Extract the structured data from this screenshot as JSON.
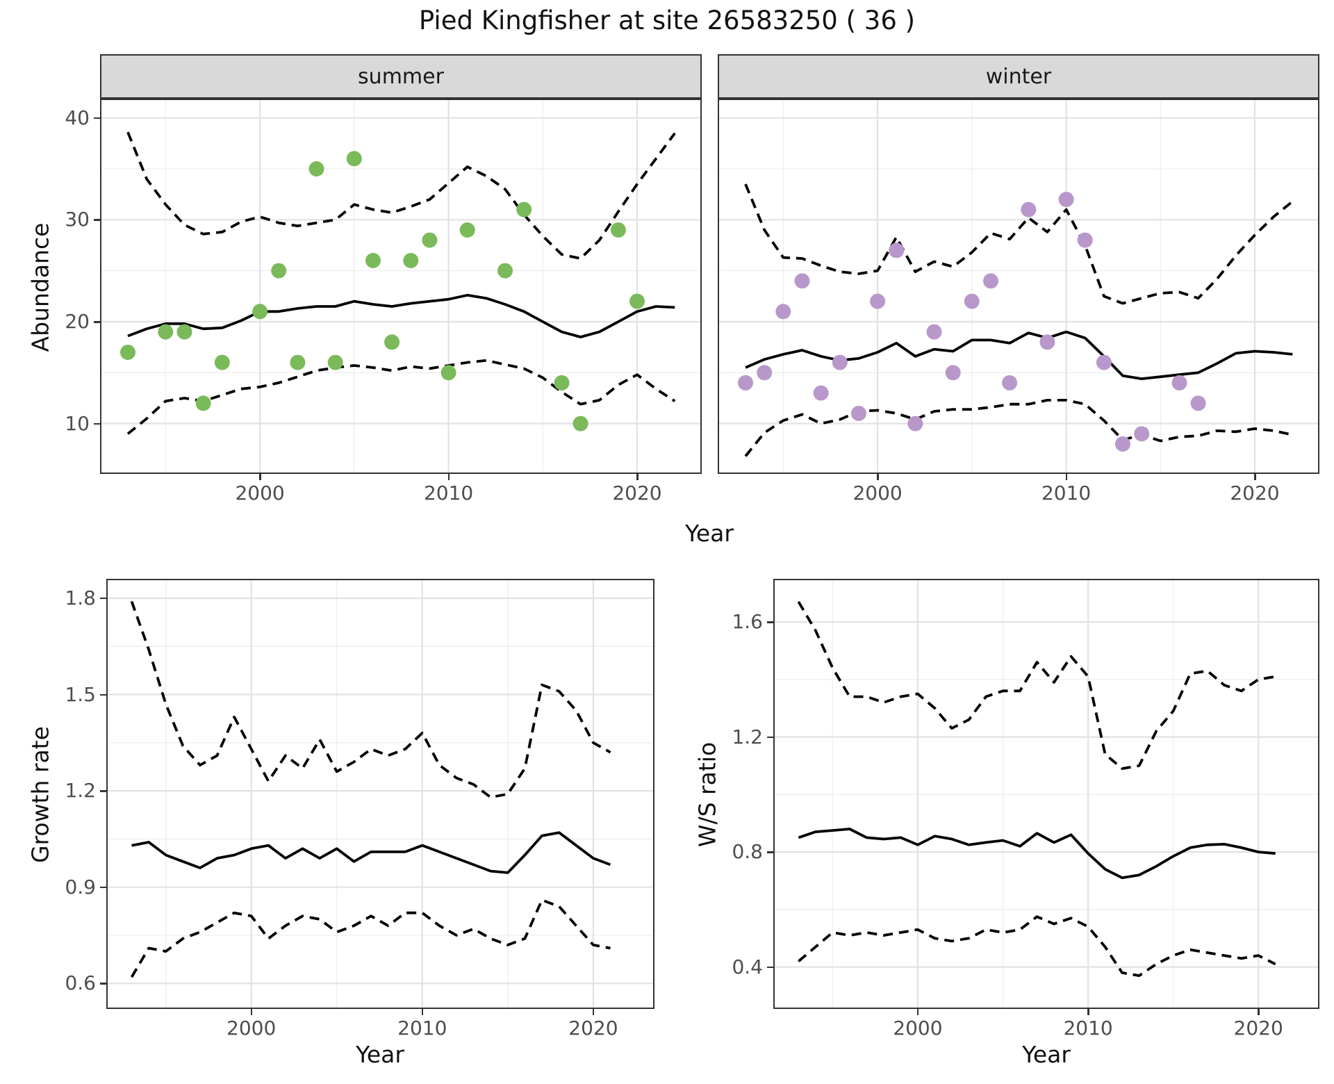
{
  "title": "Pied Kingfisher at site 26583250 ( 36 )",
  "axes": {
    "abundance_label": "Abundance",
    "growth_label": "Growth rate",
    "ws_label": "W/S ratio",
    "year_label_top": "Year",
    "year_label_bottom_left": "Year",
    "year_label_bottom_right": "Year"
  },
  "facets": {
    "summer": "summer",
    "winter": "winter"
  },
  "colors": {
    "summer_points": "#7aba5a",
    "winter_points": "#b897ca",
    "line": "#000000",
    "strip_background": "#d9d9d9",
    "panel_border": "#333333",
    "grid_major": "#e2e2e2",
    "grid_minor": "#f0f0f0",
    "tick_label": "#4d4d4d"
  },
  "chart_data": [
    {
      "type": "line+scatter",
      "id": "abundance-summer",
      "strip_label": "summer",
      "xlabel": "Year",
      "ylabel": "Abundance",
      "xlim": [
        1991.6,
        2023.35
      ],
      "ylim": [
        5.2,
        41.75
      ],
      "xticks": [
        2000,
        2010,
        2020
      ],
      "xtick_labels": [
        "2000",
        "2010",
        "2020"
      ],
      "xminor": [
        1995,
        2005,
        2015
      ],
      "yticks": [
        10,
        20,
        30,
        40
      ],
      "ytick_labels": [
        "10",
        "20",
        "30",
        "40"
      ],
      "yminor": [
        15,
        25,
        35
      ],
      "show_y_tick_labels": true,
      "grid": "on",
      "legend": "none",
      "x": [
        1993,
        1994,
        1995,
        1996,
        1997,
        1998,
        1999,
        2000,
        2001,
        2002,
        2003,
        2004,
        2005,
        2006,
        2007,
        2008,
        2009,
        2010,
        2011,
        2012,
        2013,
        2014,
        2015,
        2016,
        2017,
        2018,
        2019,
        2020,
        2021,
        2022
      ],
      "series": [
        {
          "name": "mean",
          "style": "solid",
          "values": [
            18.6,
            19.3,
            19.8,
            19.8,
            19.3,
            19.4,
            20.1,
            21.0,
            21.0,
            21.3,
            21.5,
            21.5,
            22.0,
            21.7,
            21.5,
            21.8,
            22.0,
            22.2,
            22.6,
            22.3,
            21.7,
            21.0,
            20.0,
            19.0,
            18.5,
            19.0,
            20.0,
            21.0,
            21.5,
            21.4
          ]
        },
        {
          "name": "upper_ci",
          "style": "dashed",
          "values": [
            38.6,
            34.0,
            31.5,
            29.5,
            28.6,
            28.8,
            29.8,
            30.3,
            29.7,
            29.4,
            29.7,
            30.0,
            31.5,
            31.0,
            30.7,
            31.3,
            32.0,
            33.6,
            35.2,
            34.3,
            33.0,
            30.5,
            28.4,
            26.6,
            26.2,
            28.0,
            30.8,
            33.5,
            36.0,
            38.5
          ]
        },
        {
          "name": "lower_ci",
          "style": "dashed",
          "values": [
            9.0,
            10.5,
            12.2,
            12.5,
            12.2,
            12.8,
            13.4,
            13.6,
            14.0,
            14.6,
            15.2,
            15.5,
            15.7,
            15.5,
            15.2,
            15.6,
            15.4,
            15.7,
            16.0,
            16.2,
            15.8,
            15.4,
            14.5,
            13.1,
            11.9,
            12.3,
            13.8,
            14.8,
            13.4,
            12.2
          ]
        }
      ],
      "scatter": {
        "name": "observed-counts-summer",
        "color": "#7aba5a",
        "x": [
          1993,
          1995,
          1996,
          1997,
          1998,
          2000,
          2001,
          2002,
          2003,
          2004,
          2005,
          2006,
          2007,
          2008,
          2009,
          2010,
          2011,
          2013,
          2014,
          2016,
          2017,
          2019,
          2020
        ],
        "y": [
          17,
          19,
          19,
          12,
          16,
          21,
          25,
          16,
          35,
          16,
          36,
          26,
          18,
          26,
          28,
          15,
          29,
          25,
          31,
          14,
          10,
          29,
          22
        ]
      }
    },
    {
      "type": "line+scatter",
      "id": "abundance-winter",
      "strip_label": "winter",
      "xlabel": "Year",
      "ylabel": "Abundance",
      "xlim": [
        1991.6,
        2023.35
      ],
      "ylim": [
        5.2,
        41.75
      ],
      "xticks": [
        2000,
        2010,
        2020
      ],
      "xtick_labels": [
        "2000",
        "2010",
        "2020"
      ],
      "xminor": [
        1995,
        2005,
        2015
      ],
      "yticks": [
        10,
        20,
        30,
        40
      ],
      "ytick_labels": [
        "10",
        "20",
        "30",
        "40"
      ],
      "yminor": [
        15,
        25,
        35
      ],
      "show_y_tick_labels": false,
      "grid": "on",
      "legend": "none",
      "x": [
        1993,
        1994,
        1995,
        1996,
        1997,
        1998,
        1999,
        2000,
        2001,
        2002,
        2003,
        2004,
        2005,
        2006,
        2007,
        2008,
        2009,
        2010,
        2011,
        2012,
        2013,
        2014,
        2015,
        2016,
        2017,
        2018,
        2019,
        2020,
        2021,
        2022
      ],
      "series": [
        {
          "name": "mean",
          "style": "solid",
          "values": [
            15.5,
            16.3,
            16.8,
            17.2,
            16.6,
            16.2,
            16.4,
            17.0,
            17.9,
            16.6,
            17.3,
            17.1,
            18.2,
            18.2,
            17.9,
            18.9,
            18.4,
            19.0,
            18.4,
            16.6,
            14.7,
            14.4,
            14.6,
            14.8,
            15.0,
            15.9,
            16.9,
            17.1,
            17.0,
            16.8
          ]
        },
        {
          "name": "upper_ci",
          "style": "dashed",
          "values": [
            33.5,
            29.0,
            26.3,
            26.2,
            25.5,
            24.9,
            24.7,
            25.0,
            28.3,
            24.9,
            25.9,
            25.4,
            26.8,
            28.7,
            28.1,
            30.2,
            28.8,
            31.0,
            27.5,
            22.5,
            21.8,
            22.3,
            22.8,
            22.9,
            22.3,
            24.2,
            26.5,
            28.5,
            30.3,
            31.8
          ]
        },
        {
          "name": "lower_ci",
          "style": "dashed",
          "values": [
            6.8,
            9.1,
            10.3,
            10.9,
            10.0,
            10.4,
            11.2,
            11.3,
            11.0,
            10.4,
            11.2,
            11.4,
            11.4,
            11.6,
            11.9,
            11.9,
            12.3,
            12.3,
            11.9,
            10.3,
            8.4,
            8.9,
            8.3,
            8.7,
            8.8,
            9.3,
            9.2,
            9.5,
            9.3,
            8.9
          ]
        }
      ],
      "scatter": {
        "name": "observed-counts-winter",
        "color": "#b897ca",
        "x": [
          1993,
          1994,
          1995,
          1996,
          1997,
          1998,
          1999,
          2000,
          2001,
          2002,
          2003,
          2004,
          2005,
          2006,
          2007,
          2008,
          2009,
          2010,
          2011,
          2012,
          2013,
          2014,
          2016,
          2017
        ],
        "y": [
          14,
          15,
          21,
          24,
          13,
          16,
          11,
          22,
          27,
          10,
          19,
          15,
          22,
          24,
          14,
          31,
          18,
          32,
          28,
          16,
          8,
          9,
          14,
          12
        ]
      }
    },
    {
      "type": "line",
      "id": "growth-rate",
      "strip_label": "",
      "xlabel": "Year",
      "ylabel": "Growth rate",
      "xlim": [
        1991.6,
        2023.5
      ],
      "ylim": [
        0.525,
        1.856
      ],
      "xticks": [
        2000,
        2010,
        2020
      ],
      "xtick_labels": [
        "2000",
        "2010",
        "2020"
      ],
      "xminor": [
        1995,
        2005,
        2015
      ],
      "yticks": [
        0.6,
        0.9,
        1.2,
        1.5,
        1.8
      ],
      "ytick_labels": [
        "0.6",
        "0.9",
        "1.2",
        "1.5",
        "1.8"
      ],
      "yminor": [
        0.75,
        1.05,
        1.35,
        1.65
      ],
      "show_y_tick_labels": true,
      "grid": "on",
      "legend": "none",
      "x": [
        1993,
        1994,
        1995,
        1996,
        1997,
        1998,
        1999,
        2000,
        2001,
        2002,
        2003,
        2004,
        2005,
        2006,
        2007,
        2008,
        2009,
        2010,
        2011,
        2012,
        2013,
        2014,
        2015,
        2016,
        2017,
        2018,
        2019,
        2020,
        2021
      ],
      "series": [
        {
          "name": "mean",
          "style": "solid",
          "values": [
            1.03,
            1.04,
            1.0,
            0.98,
            0.96,
            0.99,
            1.0,
            1.02,
            1.03,
            0.99,
            1.02,
            0.99,
            1.02,
            0.98,
            1.01,
            1.01,
            1.01,
            1.03,
            1.01,
            0.99,
            0.97,
            0.95,
            0.945,
            1.0,
            1.06,
            1.07,
            1.03,
            0.99,
            0.97
          ]
        },
        {
          "name": "upper_ci",
          "style": "dashed",
          "values": [
            1.79,
            1.64,
            1.47,
            1.34,
            1.28,
            1.31,
            1.43,
            1.33,
            1.23,
            1.31,
            1.27,
            1.36,
            1.26,
            1.29,
            1.33,
            1.31,
            1.33,
            1.38,
            1.28,
            1.24,
            1.22,
            1.18,
            1.19,
            1.27,
            1.53,
            1.51,
            1.45,
            1.35,
            1.32
          ]
        },
        {
          "name": "lower_ci",
          "style": "dashed",
          "values": [
            0.62,
            0.71,
            0.7,
            0.74,
            0.76,
            0.79,
            0.82,
            0.81,
            0.74,
            0.78,
            0.81,
            0.8,
            0.76,
            0.78,
            0.81,
            0.78,
            0.82,
            0.82,
            0.78,
            0.75,
            0.77,
            0.74,
            0.72,
            0.74,
            0.86,
            0.84,
            0.78,
            0.72,
            0.71
          ]
        }
      ]
    },
    {
      "type": "line",
      "id": "ws-ratio",
      "strip_label": "",
      "xlabel": "Year",
      "ylabel": "W/S ratio",
      "xlim": [
        1991.6,
        2023.5
      ],
      "ylim": [
        0.259,
        1.745
      ],
      "xticks": [
        2000,
        2010,
        2020
      ],
      "xtick_labels": [
        "2000",
        "2010",
        "2020"
      ],
      "xminor": [
        1995,
        2005,
        2015
      ],
      "yticks": [
        0.4,
        0.8,
        1.2,
        1.6
      ],
      "ytick_labels": [
        "0.4",
        "0.8",
        "1.2",
        "1.6"
      ],
      "yminor": [
        0.6,
        1.0,
        1.4
      ],
      "show_y_tick_labels": true,
      "grid": "on",
      "legend": "none",
      "x": [
        1993,
        1994,
        1995,
        1996,
        1997,
        1998,
        1999,
        2000,
        2001,
        2002,
        2003,
        2004,
        2005,
        2006,
        2007,
        2008,
        2009,
        2010,
        2011,
        2012,
        2013,
        2014,
        2015,
        2016,
        2017,
        2018,
        2019,
        2020,
        2021
      ],
      "series": [
        {
          "name": "mean",
          "style": "solid",
          "values": [
            0.85,
            0.87,
            0.875,
            0.88,
            0.85,
            0.845,
            0.85,
            0.825,
            0.855,
            0.845,
            0.825,
            0.833,
            0.84,
            0.82,
            0.865,
            0.833,
            0.86,
            0.795,
            0.74,
            0.71,
            0.72,
            0.75,
            0.785,
            0.815,
            0.825,
            0.827,
            0.815,
            0.8,
            0.795
          ]
        },
        {
          "name": "upper_ci",
          "style": "dashed",
          "values": [
            1.67,
            1.57,
            1.44,
            1.34,
            1.34,
            1.32,
            1.34,
            1.35,
            1.3,
            1.23,
            1.26,
            1.34,
            1.36,
            1.36,
            1.46,
            1.39,
            1.48,
            1.41,
            1.14,
            1.09,
            1.1,
            1.22,
            1.29,
            1.42,
            1.43,
            1.38,
            1.36,
            1.4,
            1.41
          ]
        },
        {
          "name": "lower_ci",
          "style": "dashed",
          "values": [
            0.42,
            0.47,
            0.52,
            0.51,
            0.52,
            0.51,
            0.52,
            0.53,
            0.5,
            0.49,
            0.5,
            0.53,
            0.52,
            0.53,
            0.575,
            0.55,
            0.57,
            0.54,
            0.47,
            0.38,
            0.37,
            0.41,
            0.44,
            0.46,
            0.45,
            0.44,
            0.43,
            0.44,
            0.41
          ]
        }
      ]
    }
  ]
}
